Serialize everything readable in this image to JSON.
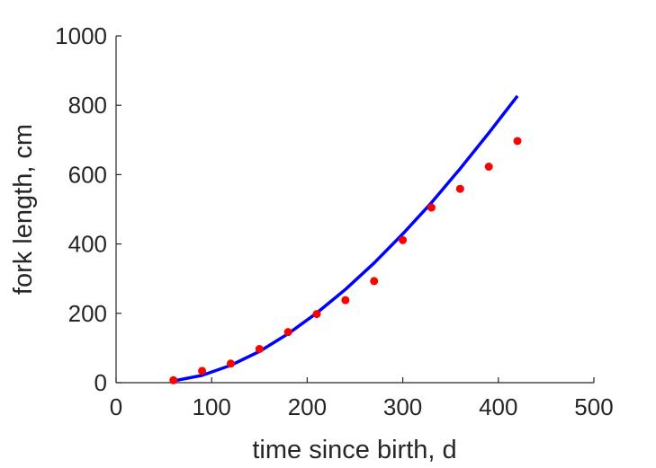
{
  "chart_data": {
    "type": "scatter",
    "title": "",
    "xlabel": "time since birth, d",
    "ylabel": "fork length, cm",
    "xlim": [
      0,
      500
    ],
    "ylim": [
      0,
      1000
    ],
    "xticks": [
      0,
      100,
      200,
      300,
      400,
      500
    ],
    "yticks": [
      0,
      200,
      400,
      600,
      800,
      1000
    ],
    "grid": false,
    "legend": "none",
    "series": [
      {
        "kind": "points",
        "color": "#ff0000",
        "x": [
          60,
          90,
          120,
          150,
          180,
          210,
          240,
          270,
          300,
          330,
          360,
          390,
          420
        ],
        "y": [
          7,
          34,
          55,
          97,
          146,
          198,
          238,
          293,
          411,
          505,
          559,
          623,
          697
        ]
      },
      {
        "kind": "line",
        "color": "#0000ff",
        "x": [
          60,
          90,
          120,
          150,
          180,
          210,
          240,
          270,
          300,
          330,
          360,
          390,
          420
        ],
        "y": [
          5,
          21,
          50,
          90,
          141,
          201,
          269,
          345,
          429,
          519,
          617,
          720,
          827
        ]
      }
    ]
  }
}
